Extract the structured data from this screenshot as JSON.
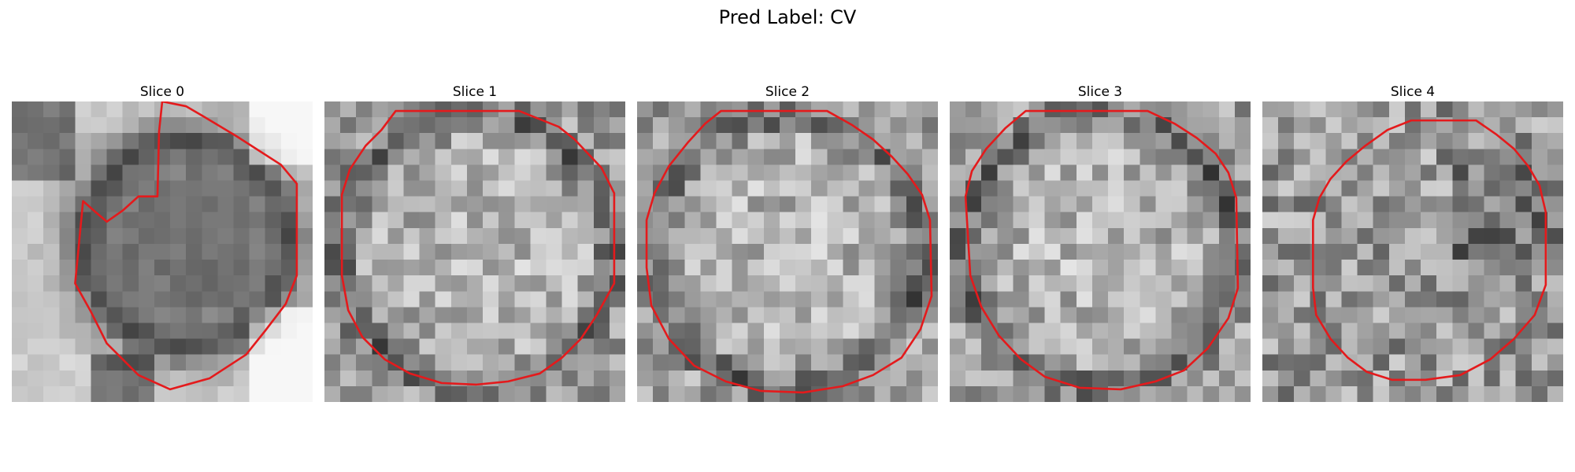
{
  "figure": {
    "title": "Pred Label: CV"
  },
  "slices": [
    {
      "title": "Slice 0",
      "pattern": "offset-blob",
      "contour": [
        [
          9.5,
          0
        ],
        [
          11,
          0.3
        ],
        [
          12.2,
          1
        ],
        [
          14.2,
          2.2
        ],
        [
          17,
          4
        ],
        [
          18,
          5.2
        ],
        [
          18,
          11
        ],
        [
          17.3,
          12.8
        ],
        [
          16,
          14.5
        ],
        [
          14.8,
          16
        ],
        [
          12.5,
          17.5
        ],
        [
          10,
          18.2
        ],
        [
          8,
          17.3
        ],
        [
          6,
          15.3
        ],
        [
          5,
          13.3
        ],
        [
          4,
          11.5
        ],
        [
          4.5,
          6.3
        ],
        [
          5.3,
          7
        ],
        [
          6,
          7.6
        ],
        [
          7,
          6.9
        ],
        [
          8,
          6
        ],
        [
          9.2,
          6
        ],
        [
          9.3,
          1.9
        ]
      ]
    },
    {
      "title": "Slice 1",
      "pattern": "round-cell",
      "contour": [
        [
          4.5,
          0.6
        ],
        [
          12.3,
          0.6
        ],
        [
          14.8,
          1.6
        ],
        [
          15.8,
          2.4
        ],
        [
          17.5,
          4.2
        ],
        [
          18.3,
          5.8
        ],
        [
          18.3,
          11.5
        ],
        [
          17.2,
          13.5
        ],
        [
          16.2,
          15
        ],
        [
          15,
          16.2
        ],
        [
          13.6,
          17.2
        ],
        [
          11.6,
          17.7
        ],
        [
          9.6,
          17.9
        ],
        [
          7.4,
          17.8
        ],
        [
          5.4,
          17.2
        ],
        [
          3.8,
          16.3
        ],
        [
          2.4,
          14.9
        ],
        [
          1.5,
          13.2
        ],
        [
          1.1,
          11
        ],
        [
          1.1,
          5.9
        ],
        [
          1.6,
          4.3
        ],
        [
          2.6,
          2.8
        ],
        [
          3.6,
          1.8
        ]
      ]
    },
    {
      "title": "Slice 2",
      "pattern": "round-cell",
      "contour": [
        [
          5.3,
          0.6
        ],
        [
          12,
          0.6
        ],
        [
          13.6,
          1.5
        ],
        [
          14.9,
          2.4
        ],
        [
          16.1,
          3.5
        ],
        [
          17.1,
          4.6
        ],
        [
          18,
          5.9
        ],
        [
          18.5,
          7.5
        ],
        [
          18.6,
          12.3
        ],
        [
          17.9,
          14.4
        ],
        [
          16.7,
          16.2
        ],
        [
          14.9,
          17.3
        ],
        [
          13,
          18
        ],
        [
          10.5,
          18.4
        ],
        [
          7.8,
          18.3
        ],
        [
          5.6,
          17.7
        ],
        [
          3.6,
          16.7
        ],
        [
          2,
          15
        ],
        [
          0.9,
          12.9
        ],
        [
          0.6,
          10.5
        ],
        [
          0.6,
          7.5
        ],
        [
          1.1,
          5.8
        ],
        [
          2,
          4.1
        ],
        [
          3.2,
          2.6
        ],
        [
          4.3,
          1.4
        ]
      ]
    },
    {
      "title": "Slice 3",
      "pattern": "round-cell",
      "contour": [
        [
          4.8,
          0.6
        ],
        [
          12.5,
          0.6
        ],
        [
          14.2,
          1.4
        ],
        [
          15.6,
          2.3
        ],
        [
          16.8,
          3.3
        ],
        [
          17.6,
          4.5
        ],
        [
          18.1,
          6.1
        ],
        [
          18.2,
          11.8
        ],
        [
          17.6,
          13.7
        ],
        [
          16.3,
          15.6
        ],
        [
          14.8,
          17
        ],
        [
          13,
          17.7
        ],
        [
          10.8,
          18.2
        ],
        [
          8.2,
          18.1
        ],
        [
          6,
          17.4
        ],
        [
          4.5,
          16.3
        ],
        [
          3.1,
          14.8
        ],
        [
          2,
          13
        ],
        [
          1.3,
          11
        ],
        [
          1,
          6
        ],
        [
          1.4,
          4.4
        ],
        [
          2.3,
          3
        ],
        [
          3.5,
          1.7
        ]
      ]
    },
    {
      "title": "Slice 4",
      "pattern": "dim-cell",
      "contour": [
        [
          9.4,
          1.2
        ],
        [
          13.5,
          1.2
        ],
        [
          14.8,
          2.1
        ],
        [
          15.9,
          3
        ],
        [
          16.8,
          4.1
        ],
        [
          17.5,
          5.3
        ],
        [
          17.9,
          7
        ],
        [
          17.9,
          11.6
        ],
        [
          17.2,
          13.5
        ],
        [
          15.9,
          15
        ],
        [
          14.4,
          16.3
        ],
        [
          12.5,
          17.3
        ],
        [
          10.3,
          17.6
        ],
        [
          8.2,
          17.6
        ],
        [
          6.6,
          17.1
        ],
        [
          5.4,
          16.2
        ],
        [
          4.3,
          15
        ],
        [
          3.4,
          13.5
        ],
        [
          3.2,
          11.8
        ],
        [
          3.2,
          7.5
        ],
        [
          3.6,
          6.1
        ],
        [
          4.3,
          4.9
        ],
        [
          5.3,
          3.8
        ],
        [
          6.5,
          2.8
        ],
        [
          7.9,
          1.8
        ]
      ]
    }
  ],
  "style": {
    "contour_color": "#e41a1c"
  }
}
